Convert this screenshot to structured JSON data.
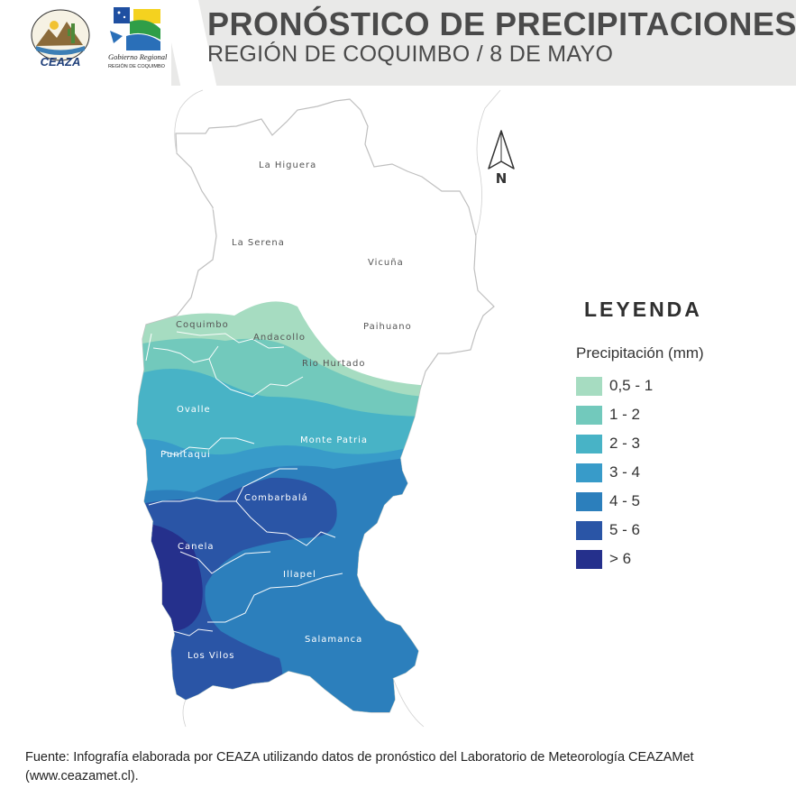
{
  "header": {
    "title": "PRONÓSTICO DE PRECIPITACIONES",
    "subtitle": "REGIÓN DE COQUIMBO / 8 DE MAYO",
    "logo_ceaza_text": "CEAZA",
    "logo_ceaza_ring": "CENTRO DE ESTUDIOS AVANZADOS EN ZONAS ÁRIDAS",
    "logo_gob_line1": "Gobierno Regional",
    "logo_gob_line2": "REGIÓN DE COQUIMBO"
  },
  "map": {
    "communes": [
      "La Higuera",
      "La Serena",
      "Vicuña",
      "Coquimbo",
      "Andacollo",
      "Paihuano",
      "Rio Hurtado",
      "Ovalle",
      "Monte Patria",
      "Punitaqui",
      "Combarbalá",
      "Canela",
      "Illapel",
      "Salamanca",
      "Los Vilos"
    ],
    "north_label": "N"
  },
  "legend": {
    "title": "LEYENDA",
    "subtitle": "Precipitación (mm)",
    "items": [
      {
        "label": "0,5 - 1",
        "color": "#a6dcc1"
      },
      {
        "label": "1 - 2",
        "color": "#72c9bc"
      },
      {
        "label": "2 - 3",
        "color": "#48b3c6"
      },
      {
        "label": "3 - 4",
        "color": "#389bc9"
      },
      {
        "label": "4 - 5",
        "color": "#2c7fbc"
      },
      {
        "label": "5 - 6",
        "color": "#2a55a6"
      },
      {
        "label": "> 6",
        "color": "#25308c"
      }
    ]
  },
  "footer": {
    "line1": "Fuente: Infografía elaborada por CEAZA utilizando datos de pronóstico del Laboratorio de Meteorología CEAZAMet",
    "line2": "(www.ceazamet.cl)."
  }
}
